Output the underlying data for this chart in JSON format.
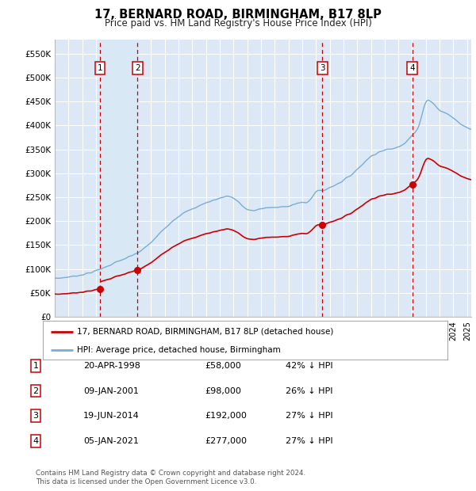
{
  "title": "17, BERNARD ROAD, BIRMINGHAM, B17 8LP",
  "subtitle": "Price paid vs. HM Land Registry's House Price Index (HPI)",
  "ylim": [
    0,
    580000
  ],
  "yticks": [
    0,
    50000,
    100000,
    150000,
    200000,
    250000,
    300000,
    350000,
    400000,
    450000,
    500000,
    550000
  ],
  "ytick_labels": [
    "£0",
    "£50K",
    "£100K",
    "£150K",
    "£200K",
    "£250K",
    "£300K",
    "£350K",
    "£400K",
    "£450K",
    "£500K",
    "£550K"
  ],
  "xlim_start": 1995.0,
  "xlim_end": 2025.3,
  "sale_dates": [
    1998.3,
    2001.03,
    2014.47,
    2021.01
  ],
  "sale_prices": [
    58000,
    98000,
    192000,
    277000
  ],
  "sale_labels": [
    "1",
    "2",
    "3",
    "4"
  ],
  "hpi_color": "#7aadd4",
  "sale_color": "#cc0000",
  "vline_color": "#cc0000",
  "span_color": "#d8e8f4",
  "legend_entries": [
    "17, BERNARD ROAD, BIRMINGHAM, B17 8LP (detached house)",
    "HPI: Average price, detached house, Birmingham"
  ],
  "table_data": [
    [
      "1",
      "20-APR-1998",
      "£58,000",
      "42% ↓ HPI"
    ],
    [
      "2",
      "09-JAN-2001",
      "£98,000",
      "26% ↓ HPI"
    ],
    [
      "3",
      "19-JUN-2014",
      "£192,000",
      "27% ↓ HPI"
    ],
    [
      "4",
      "05-JAN-2021",
      "£277,000",
      "27% ↓ HPI"
    ]
  ],
  "footer": "Contains HM Land Registry data © Crown copyright and database right 2024.\nThis data is licensed under the Open Government Licence v3.0.",
  "background_color": "#ffffff",
  "plot_bg_color": "#dce8f5",
  "grid_color": "#ffffff"
}
